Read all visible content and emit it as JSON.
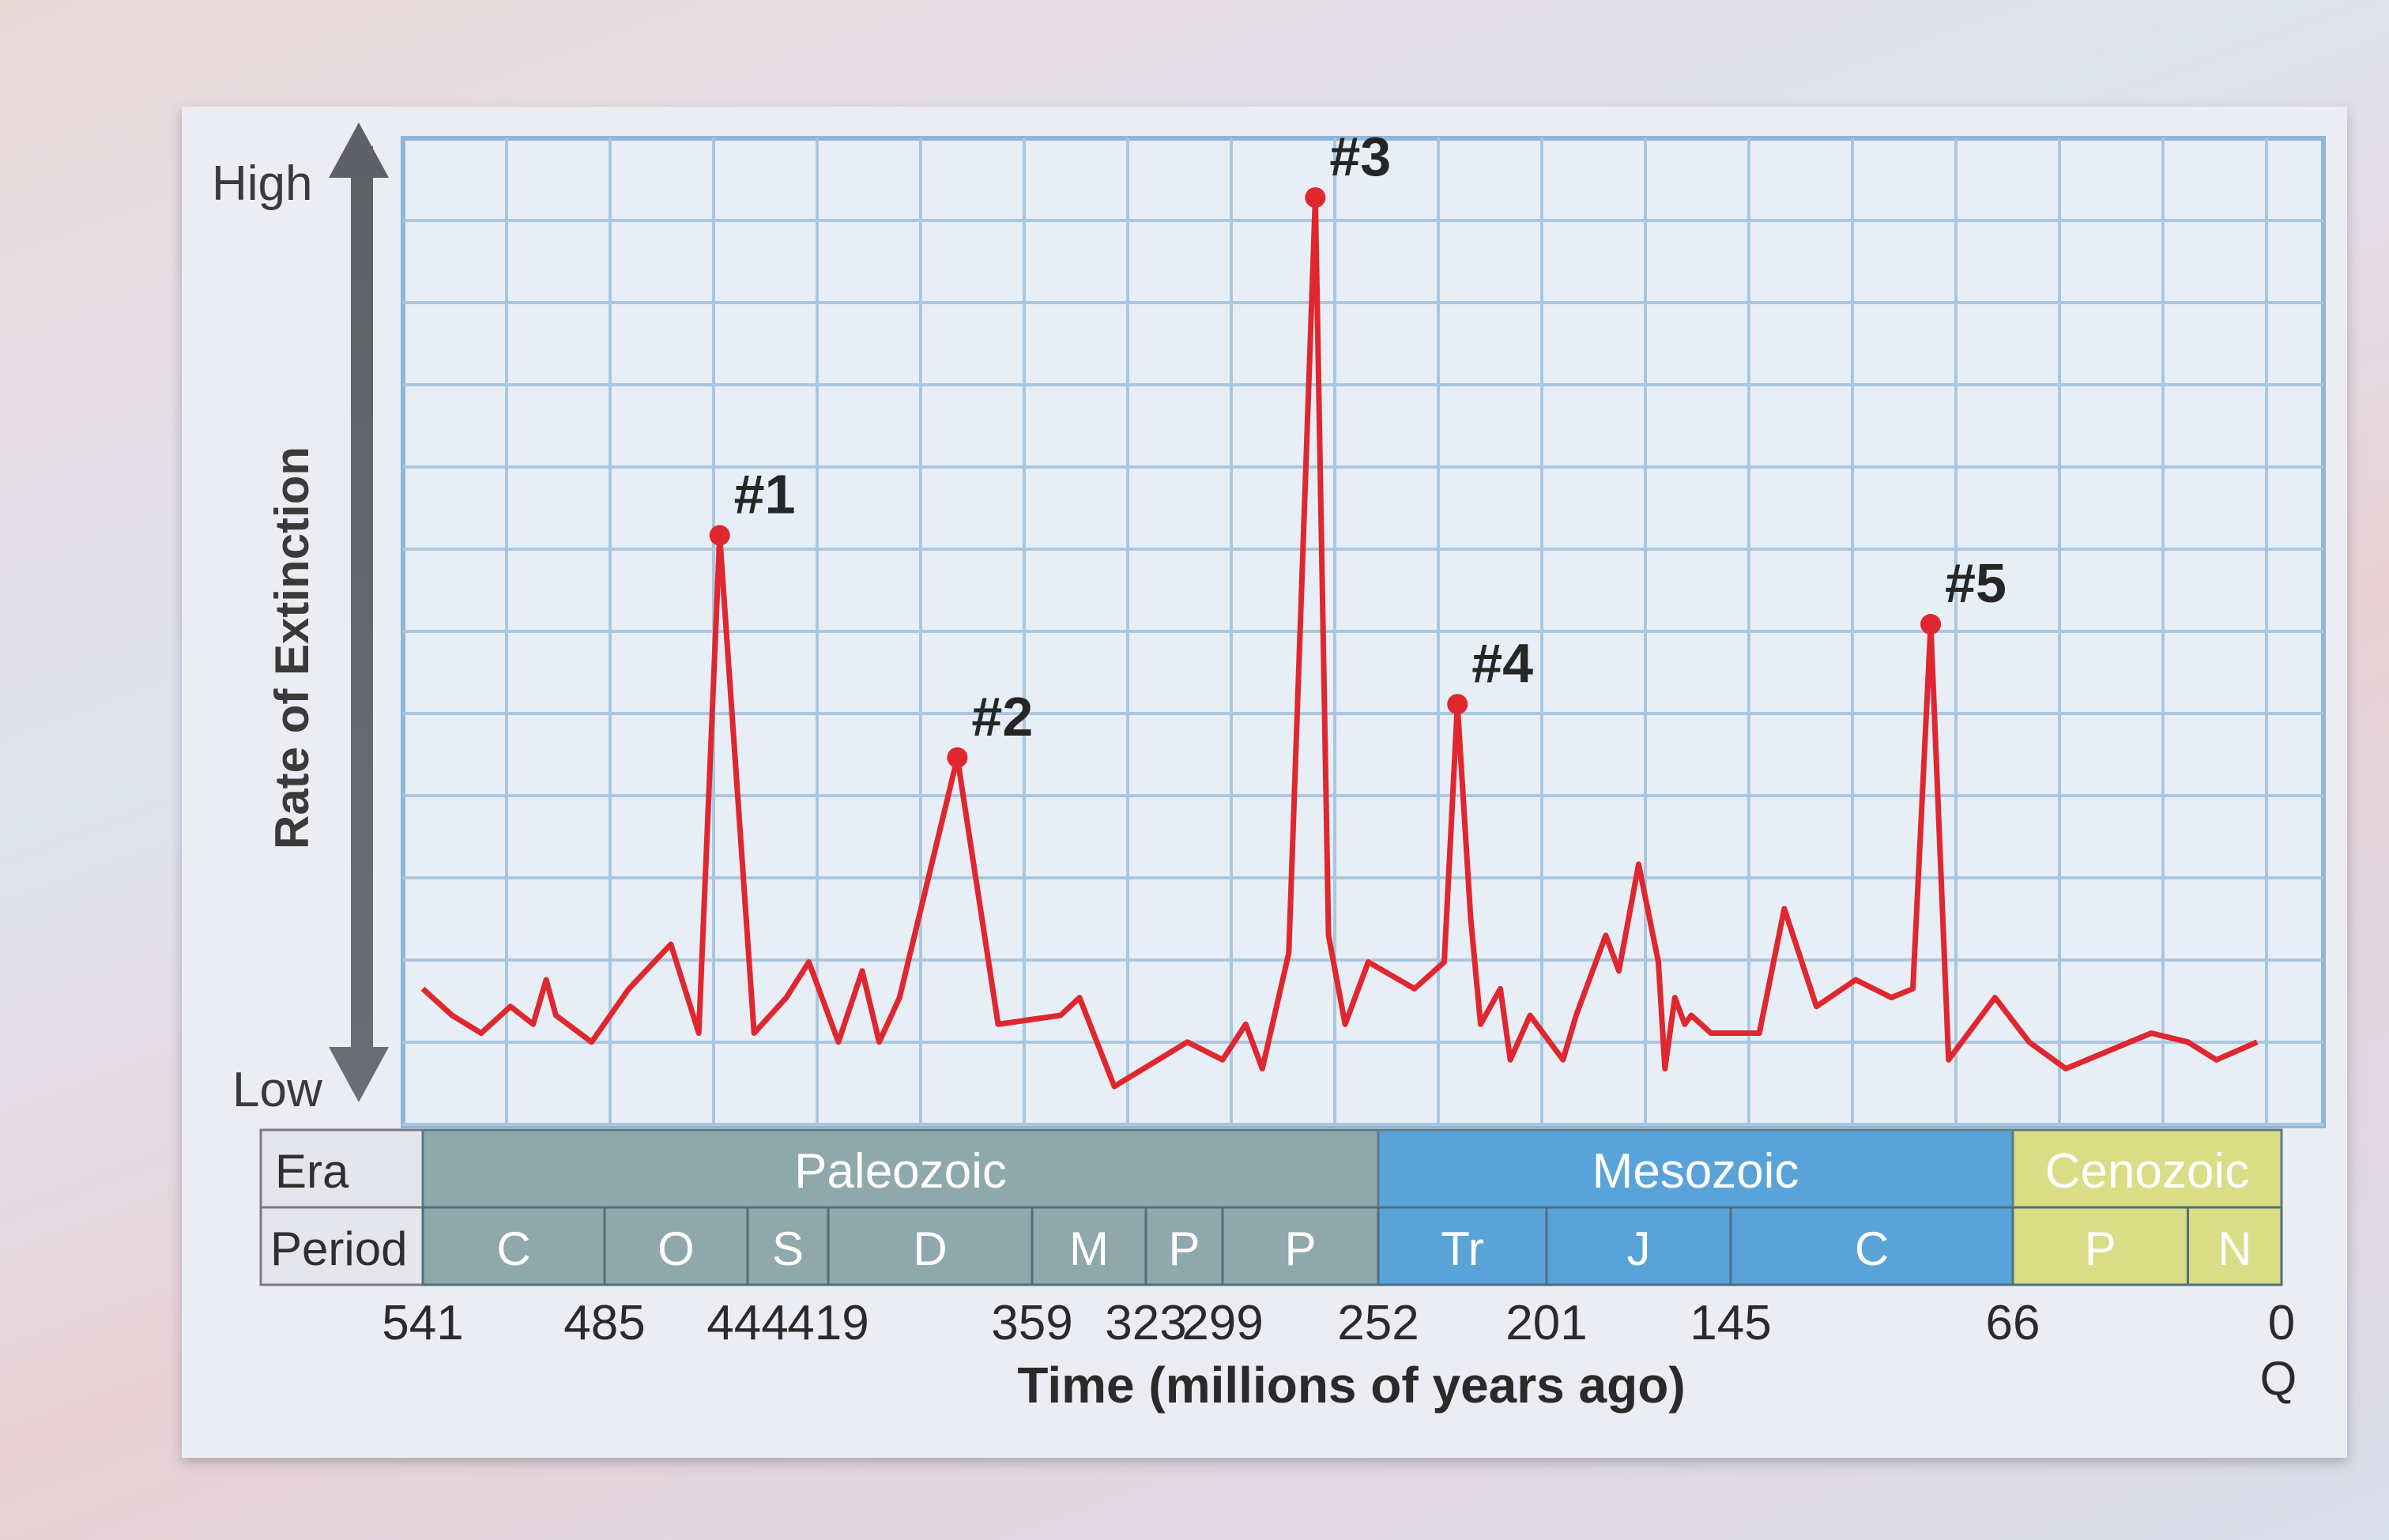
{
  "chart_data": {
    "type": "line",
    "xlabel": "Time (millions of years ago)",
    "ylabel": "Rate of Extinction",
    "y_high_label": "High",
    "y_low_label": "Low",
    "ylim": [
      0,
      100
    ],
    "x_axis_ticks": [
      "541",
      "485",
      "444",
      "419",
      "359",
      "323",
      "299",
      "252",
      "201",
      "145",
      "66",
      "0"
    ],
    "x_extra_label": "Q",
    "grid": true,
    "series": [
      {
        "color": "#e0262e",
        "points": [
          [
            541,
            11
          ],
          [
            532,
            8
          ],
          [
            523,
            6
          ],
          [
            514,
            9
          ],
          [
            507,
            7
          ],
          [
            503,
            12
          ],
          [
            500,
            8
          ],
          [
            489,
            5
          ],
          [
            478,
            11
          ],
          [
            466,
            16
          ],
          [
            458,
            6
          ],
          [
            452,
            62
          ],
          [
            442,
            6
          ],
          [
            432,
            10
          ],
          [
            425,
            14
          ],
          [
            416,
            5
          ],
          [
            409,
            13
          ],
          [
            404,
            5
          ],
          [
            398,
            10
          ],
          [
            381,
            37
          ],
          [
            369,
            7
          ],
          [
            350,
            8
          ],
          [
            344,
            10
          ],
          [
            333,
            0
          ],
          [
            310,
            5
          ],
          [
            299,
            3
          ],
          [
            292,
            7
          ],
          [
            287,
            2
          ],
          [
            279,
            15
          ],
          [
            271,
            100
          ],
          [
            267,
            17
          ],
          [
            262,
            7
          ],
          [
            255,
            14
          ],
          [
            241,
            11
          ],
          [
            232,
            14
          ],
          [
            228,
            43
          ],
          [
            224,
            19
          ],
          [
            221,
            7
          ],
          [
            215,
            11
          ],
          [
            212,
            3
          ],
          [
            206,
            8
          ],
          [
            196,
            3
          ],
          [
            192,
            8
          ],
          [
            183,
            17
          ],
          [
            179,
            13
          ],
          [
            173,
            25
          ],
          [
            167,
            14
          ],
          [
            165,
            2
          ],
          [
            162,
            10
          ],
          [
            159,
            7
          ],
          [
            157,
            8
          ],
          [
            151,
            6
          ],
          [
            137,
            6
          ],
          [
            130,
            20
          ],
          [
            121,
            9
          ],
          [
            110,
            12
          ],
          [
            100,
            10
          ],
          [
            94,
            11
          ],
          [
            89,
            52
          ],
          [
            84,
            3
          ],
          [
            71,
            10
          ],
          [
            62,
            5
          ],
          [
            53,
            2
          ],
          [
            32,
            6
          ],
          [
            23,
            5
          ],
          [
            16,
            3
          ],
          [
            6,
            5
          ]
        ]
      }
    ],
    "annotations": [
      {
        "label": "#1",
        "x": 452,
        "y": 62
      },
      {
        "label": "#2",
        "x": 381,
        "y": 37
      },
      {
        "label": "#3",
        "x": 271,
        "y": 100
      },
      {
        "label": "#4",
        "x": 228,
        "y": 43
      },
      {
        "label": "#5",
        "x": 89,
        "y": 52
      }
    ],
    "eras": [
      {
        "name": "Paleozoic",
        "from": 541,
        "to": 252,
        "color": "#8fa8ab"
      },
      {
        "name": "Mesozoic",
        "from": 252,
        "to": 66,
        "color": "#5aa3d9"
      },
      {
        "name": "Cenozoic",
        "from": 66,
        "to": 0,
        "color": "#d8dd86"
      }
    ],
    "periods": [
      {
        "label": "C",
        "from": 541,
        "to": 485
      },
      {
        "label": "O",
        "from": 485,
        "to": 444
      },
      {
        "label": "S",
        "from": 444,
        "to": 419
      },
      {
        "label": "D",
        "from": 419,
        "to": 359
      },
      {
        "label": "M",
        "from": 359,
        "to": 323
      },
      {
        "label": "P",
        "from": 323,
        "to": 299
      },
      {
        "label": "P",
        "from": 299,
        "to": 252
      },
      {
        "label": "Tr",
        "from": 252,
        "to": 201
      },
      {
        "label": "J",
        "from": 201,
        "to": 145
      },
      {
        "label": "C",
        "from": 145,
        "to": 66
      },
      {
        "label": "P",
        "from": 66,
        "to": 23
      },
      {
        "label": "N",
        "from": 23,
        "to": 0
      }
    ]
  },
  "table": {
    "era_label": "Era",
    "period_label": "Period"
  }
}
